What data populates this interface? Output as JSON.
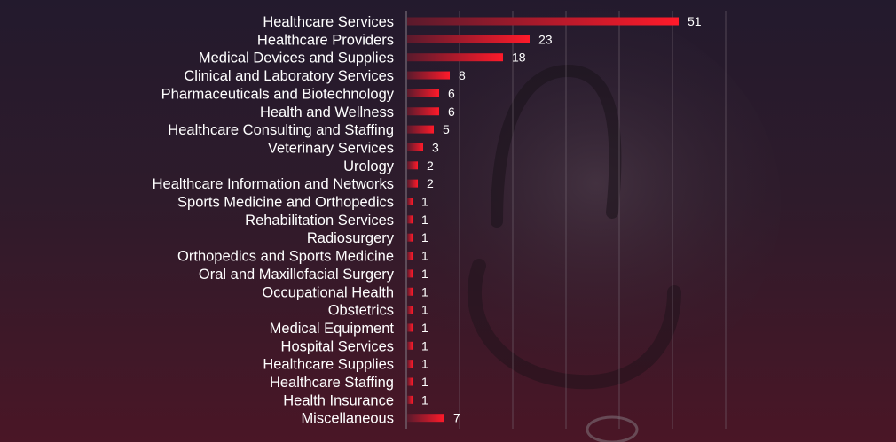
{
  "colors": {
    "bar_start": "#5a1a2c",
    "bar_end": "#ff1a2a",
    "text": "#ffffff",
    "grid": "#7a6d78"
  },
  "chart_data": {
    "type": "bar",
    "orientation": "horizontal",
    "title": "",
    "xlabel": "",
    "ylabel": "",
    "xlim": [
      0,
      56
    ],
    "grid": true,
    "legend": "none",
    "categories": [
      "Healthcare Services",
      "Healthcare Providers",
      "Medical Devices and Supplies",
      "Clinical and Laboratory Services",
      "Pharmaceuticals and Biotechnology",
      "Health and Wellness",
      "Healthcare Consulting and Staffing",
      "Veterinary Services",
      "Urology",
      "Healthcare Information and Networks",
      "Sports Medicine and Orthopedics",
      "Rehabilitation Services",
      "Radiosurgery",
      "Orthopedics and Sports Medicine",
      "Oral and Maxillofacial Surgery",
      "Occupational Health",
      "Obstetrics",
      "Medical Equipment",
      "Hospital Services",
      "Healthcare Supplies",
      "Healthcare Staffing",
      "Health Insurance",
      "Miscellaneous"
    ],
    "values": [
      51,
      23,
      18,
      8,
      6,
      6,
      5,
      3,
      2,
      2,
      1,
      1,
      1,
      1,
      1,
      1,
      1,
      1,
      1,
      1,
      1,
      1,
      7
    ]
  }
}
